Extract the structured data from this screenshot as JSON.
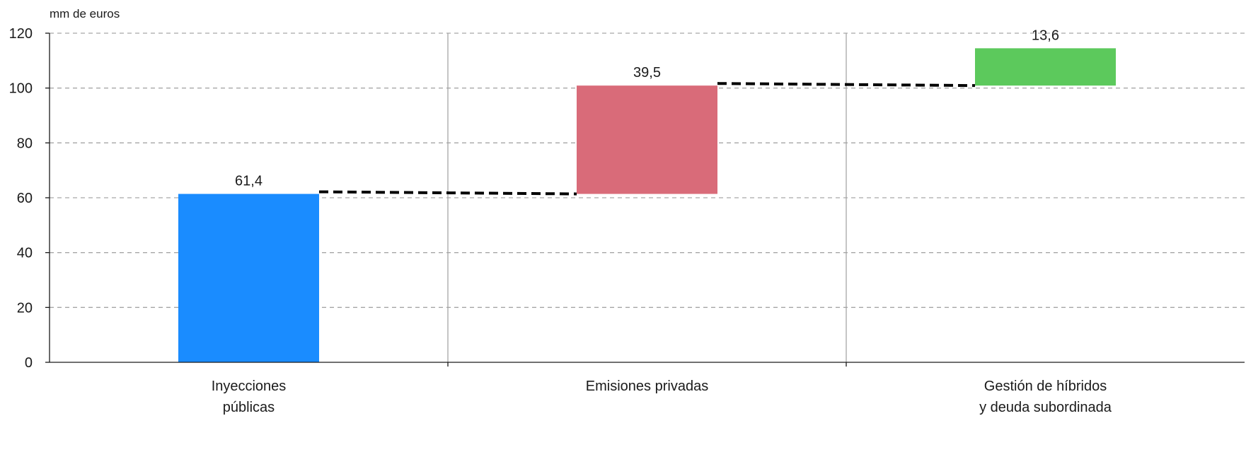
{
  "chart_data": {
    "type": "bar",
    "subtype": "waterfall",
    "unit_label": "mm de euros",
    "categories": [
      [
        "Inyecciones",
        "públicas"
      ],
      [
        "Emisiones privadas"
      ],
      [
        "Gestión de híbridos",
        "y deuda subordinada"
      ]
    ],
    "values": [
      61.4,
      39.5,
      13.6
    ],
    "data_labels": [
      "61,4",
      "39,5",
      "13,6"
    ],
    "colors": [
      "#1a8cff",
      "#d96b79",
      "#5cc95c"
    ],
    "connector_color": "#000000",
    "ylim": [
      0,
      120
    ],
    "yticks": [
      0,
      20,
      40,
      60,
      80,
      100,
      120
    ],
    "grid": "horizontal dashed",
    "legend": "none"
  }
}
